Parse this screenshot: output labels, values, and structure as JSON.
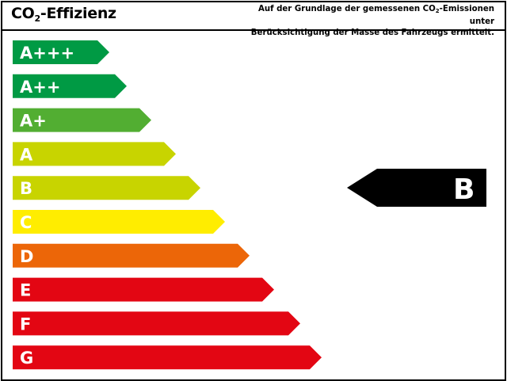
{
  "header": {
    "title_prefix": "CO",
    "title_sub": "2",
    "title_suffix": "-Effizienz",
    "note_line1_prefix": "Auf der Grundlage der gemessenen CO",
    "note_line1_sub": "2",
    "note_line1_suffix": "-Emissionen unter",
    "note_line2": "Berücksichtigung der Masse des Fahrzeugs ermittelt."
  },
  "classes": [
    {
      "label": "A+++",
      "color": "#009a44"
    },
    {
      "label": "A++",
      "color": "#009a44"
    },
    {
      "label": "A+",
      "color": "#52ae32"
    },
    {
      "label": "A",
      "color": "#c8d400"
    },
    {
      "label": "B",
      "color": "#c8d400"
    },
    {
      "label": "C",
      "color": "#ffed00"
    },
    {
      "label": "D",
      "color": "#ec6608"
    },
    {
      "label": "E",
      "color": "#e30613"
    },
    {
      "label": "F",
      "color": "#e30613"
    },
    {
      "label": "G",
      "color": "#e30613"
    }
  ],
  "rating": {
    "label": "B",
    "color": "#000000"
  }
}
